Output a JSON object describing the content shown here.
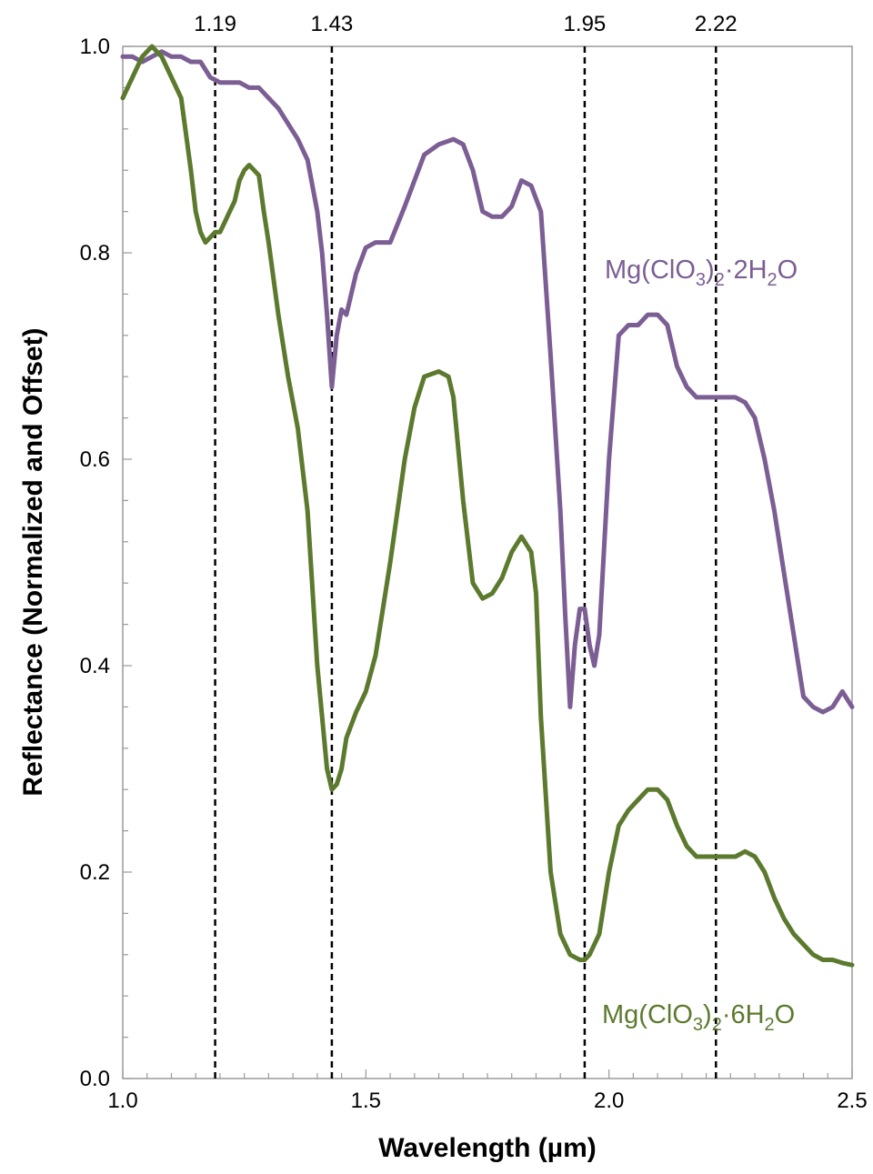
{
  "chart_data": {
    "type": "line",
    "title": "",
    "xlabel": "Wavelength (µm)",
    "ylabel": "Reflectance (Normalized and Offset)",
    "xlim": [
      1.0,
      2.5
    ],
    "ylim": [
      0.0,
      1.0
    ],
    "x_ticks": [
      "1.0",
      "1.5",
      "2.0",
      "2.5"
    ],
    "y_ticks": [
      "0.0",
      "0.2",
      "0.4",
      "0.6",
      "0.8",
      "1.0"
    ],
    "grid": false,
    "vertical_markers": [
      {
        "x": 1.19,
        "label": "1.19"
      },
      {
        "x": 1.43,
        "label": "1.43"
      },
      {
        "x": 1.95,
        "label": "1.95"
      },
      {
        "x": 2.22,
        "label": "2.22"
      }
    ],
    "series": [
      {
        "name": "Mg(ClO3)2·2H2O",
        "label_parts": {
          "base": "Mg(ClO",
          "sub1": "3",
          "mid": ")",
          "sub2": "2",
          "dot": "·2H",
          "sub3": "2",
          "tail": "O"
        },
        "color": "#7B5E93",
        "x": [
          1.0,
          1.02,
          1.04,
          1.06,
          1.08,
          1.1,
          1.12,
          1.14,
          1.16,
          1.18,
          1.2,
          1.22,
          1.24,
          1.26,
          1.28,
          1.3,
          1.32,
          1.34,
          1.36,
          1.38,
          1.4,
          1.41,
          1.42,
          1.43,
          1.44,
          1.45,
          1.46,
          1.48,
          1.5,
          1.52,
          1.55,
          1.58,
          1.6,
          1.62,
          1.65,
          1.68,
          1.7,
          1.72,
          1.74,
          1.76,
          1.78,
          1.8,
          1.82,
          1.84,
          1.86,
          1.88,
          1.9,
          1.91,
          1.92,
          1.93,
          1.94,
          1.95,
          1.96,
          1.97,
          1.98,
          2.0,
          2.02,
          2.04,
          2.06,
          2.08,
          2.1,
          2.12,
          2.14,
          2.16,
          2.18,
          2.2,
          2.22,
          2.24,
          2.26,
          2.28,
          2.3,
          2.32,
          2.34,
          2.36,
          2.38,
          2.4,
          2.42,
          2.44,
          2.46,
          2.48,
          2.5
        ],
        "y": [
          0.99,
          0.99,
          0.985,
          0.99,
          0.995,
          0.99,
          0.99,
          0.985,
          0.985,
          0.97,
          0.965,
          0.965,
          0.965,
          0.96,
          0.96,
          0.95,
          0.94,
          0.925,
          0.91,
          0.89,
          0.84,
          0.8,
          0.74,
          0.67,
          0.72,
          0.745,
          0.74,
          0.78,
          0.805,
          0.81,
          0.81,
          0.845,
          0.87,
          0.895,
          0.905,
          0.91,
          0.905,
          0.88,
          0.84,
          0.835,
          0.835,
          0.845,
          0.87,
          0.865,
          0.84,
          0.7,
          0.55,
          0.45,
          0.36,
          0.42,
          0.455,
          0.455,
          0.42,
          0.4,
          0.43,
          0.6,
          0.72,
          0.73,
          0.73,
          0.74,
          0.74,
          0.73,
          0.69,
          0.67,
          0.66,
          0.66,
          0.66,
          0.66,
          0.66,
          0.655,
          0.64,
          0.6,
          0.55,
          0.49,
          0.43,
          0.37,
          0.36,
          0.355,
          0.36,
          0.375,
          0.36
        ]
      },
      {
        "name": "Mg(ClO3)2·6H2O",
        "label_parts": {
          "base": "Mg(ClO",
          "sub1": "3",
          "mid": ")",
          "sub2": "2",
          "dot": "·6H",
          "sub3": "2",
          "tail": "O"
        },
        "color": "#5C7A2E",
        "x": [
          1.0,
          1.01,
          1.02,
          1.03,
          1.04,
          1.05,
          1.06,
          1.07,
          1.08,
          1.1,
          1.12,
          1.14,
          1.15,
          1.16,
          1.17,
          1.18,
          1.19,
          1.2,
          1.21,
          1.22,
          1.23,
          1.24,
          1.25,
          1.26,
          1.27,
          1.28,
          1.29,
          1.3,
          1.32,
          1.34,
          1.36,
          1.38,
          1.4,
          1.42,
          1.43,
          1.44,
          1.45,
          1.46,
          1.48,
          1.5,
          1.52,
          1.55,
          1.58,
          1.6,
          1.62,
          1.65,
          1.67,
          1.68,
          1.7,
          1.72,
          1.74,
          1.76,
          1.78,
          1.8,
          1.82,
          1.84,
          1.85,
          1.86,
          1.88,
          1.9,
          1.92,
          1.94,
          1.95,
          1.96,
          1.98,
          2.0,
          2.02,
          2.04,
          2.06,
          2.08,
          2.1,
          2.12,
          2.14,
          2.16,
          2.18,
          2.2,
          2.22,
          2.24,
          2.26,
          2.28,
          2.3,
          2.32,
          2.34,
          2.36,
          2.38,
          2.4,
          2.42,
          2.44,
          2.46,
          2.48,
          2.5
        ],
        "y": [
          0.95,
          0.96,
          0.97,
          0.98,
          0.99,
          0.995,
          1.0,
          0.995,
          0.99,
          0.97,
          0.95,
          0.88,
          0.84,
          0.82,
          0.81,
          0.815,
          0.82,
          0.82,
          0.83,
          0.84,
          0.85,
          0.87,
          0.88,
          0.885,
          0.88,
          0.875,
          0.84,
          0.81,
          0.74,
          0.68,
          0.63,
          0.55,
          0.4,
          0.3,
          0.28,
          0.285,
          0.3,
          0.33,
          0.355,
          0.375,
          0.41,
          0.5,
          0.6,
          0.65,
          0.68,
          0.685,
          0.68,
          0.66,
          0.56,
          0.48,
          0.465,
          0.47,
          0.485,
          0.51,
          0.525,
          0.51,
          0.47,
          0.35,
          0.2,
          0.14,
          0.12,
          0.115,
          0.115,
          0.12,
          0.14,
          0.2,
          0.245,
          0.26,
          0.27,
          0.28,
          0.28,
          0.27,
          0.245,
          0.225,
          0.215,
          0.215,
          0.215,
          0.215,
          0.215,
          0.22,
          0.215,
          0.2,
          0.175,
          0.155,
          0.14,
          0.13,
          0.12,
          0.115,
          0.115,
          0.112,
          0.11
        ]
      }
    ]
  }
}
